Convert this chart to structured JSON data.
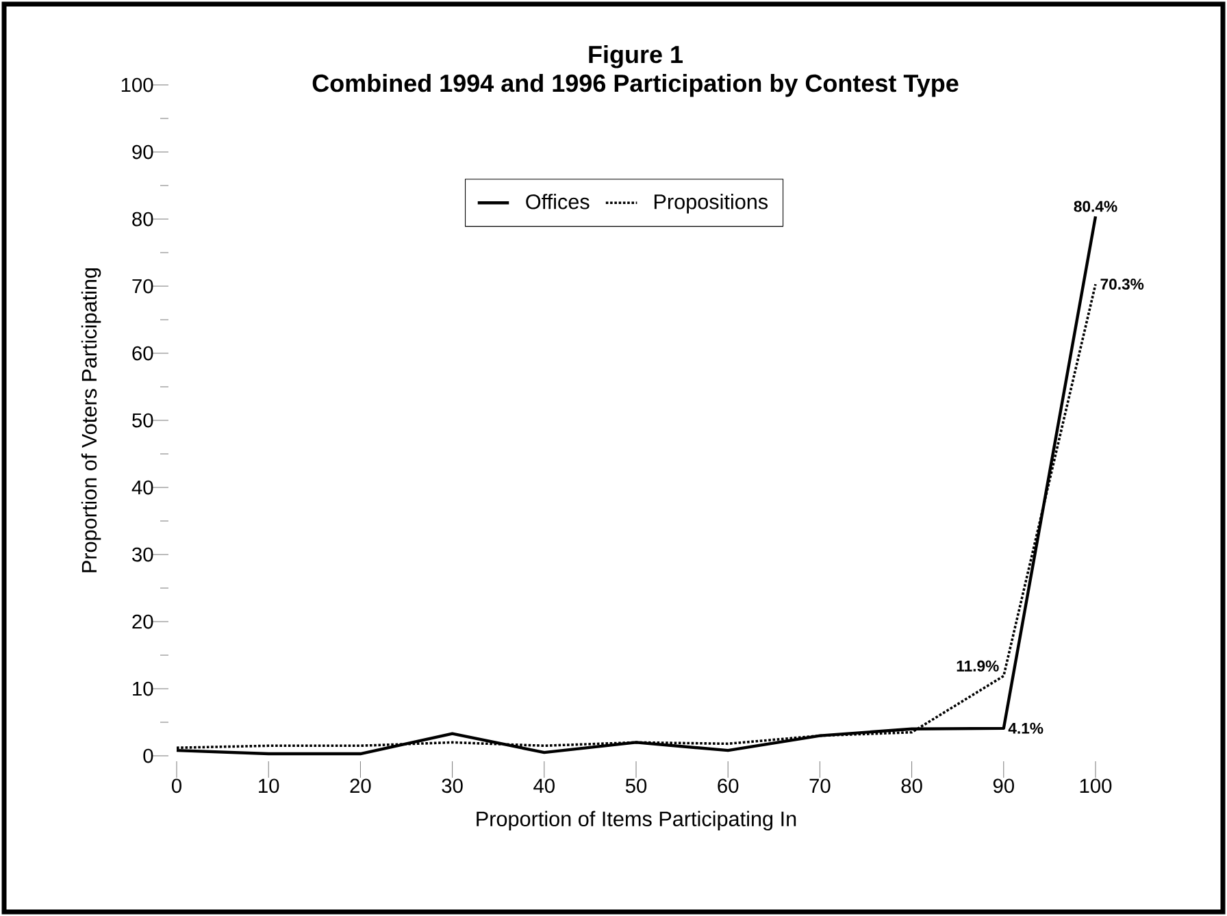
{
  "chart_data": {
    "type": "line",
    "title": "Figure 1",
    "subtitle": "Combined 1994 and 1996 Participation by Contest Type",
    "xlabel": "Proportion of Items Participating In",
    "ylabel": "Proportion of Voters Participating",
    "x": [
      0,
      10,
      20,
      30,
      40,
      50,
      60,
      70,
      80,
      90,
      100
    ],
    "series": [
      {
        "name": "Offices",
        "color": "#000000",
        "line_style": "solid",
        "values": [
          0.8,
          0.3,
          0.3,
          3.3,
          0.5,
          2.0,
          0.8,
          3.0,
          4.0,
          4.1,
          80.4
        ],
        "value_labels": [
          null,
          null,
          null,
          null,
          null,
          null,
          null,
          null,
          null,
          "4.1%",
          "80.4%"
        ]
      },
      {
        "name": "Propositions",
        "color": "#000000",
        "line_style": "dotted",
        "values": [
          1.2,
          1.5,
          1.5,
          2.0,
          1.5,
          2.0,
          1.8,
          3.0,
          3.5,
          11.9,
          70.3
        ],
        "value_labels": [
          null,
          null,
          null,
          null,
          null,
          null,
          null,
          null,
          null,
          "11.9%",
          "70.3%"
        ]
      }
    ],
    "xlim": [
      0,
      100
    ],
    "ylim": [
      0,
      100
    ],
    "xticks": [
      0,
      10,
      20,
      30,
      40,
      50,
      60,
      70,
      80,
      90,
      100
    ],
    "yticks": [
      0,
      {
        "value": 5,
        "label": null
      },
      10,
      {
        "value": 15,
        "label": null
      },
      20,
      {
        "value": 25,
        "label": null
      },
      30,
      {
        "value": 35,
        "label": null
      },
      40,
      {
        "value": 45,
        "label": null
      },
      50,
      {
        "value": 55,
        "label": null
      },
      60,
      {
        "value": 65,
        "label": null
      },
      70,
      {
        "value": 75,
        "label": null
      },
      80,
      {
        "value": 85,
        "label": null
      },
      90,
      {
        "value": 95,
        "label": null
      },
      100
    ],
    "legend": "top",
    "grid": false,
    "marker": "none"
  }
}
